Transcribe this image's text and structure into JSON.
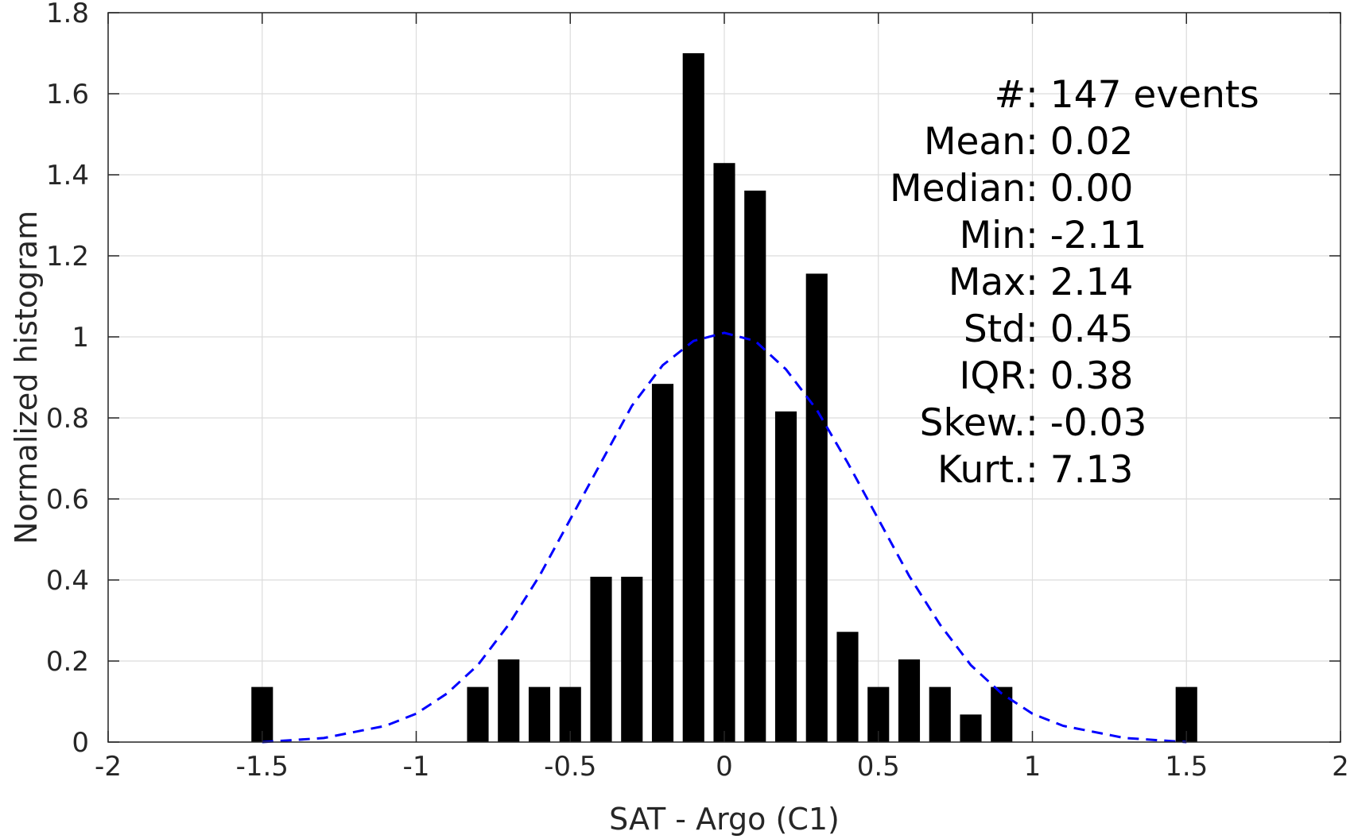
{
  "chart_data": {
    "type": "bar",
    "title": "",
    "xlabel": "SAT - Argo (C1)",
    "ylabel": "Normalized histogram",
    "xlim": [
      -2,
      2
    ],
    "ylim": [
      0,
      1.8
    ],
    "x_ticks": [
      -2,
      -1.5,
      -1,
      -0.5,
      0,
      0.5,
      1,
      1.5,
      2
    ],
    "x_tick_labels": [
      "-2",
      "-1.5",
      "-1",
      "-0.5",
      "0",
      "0.5",
      "1",
      "1.5",
      "2"
    ],
    "y_ticks": [
      0,
      0.2,
      0.4,
      0.6,
      0.8,
      1,
      1.2,
      1.4,
      1.6,
      1.8
    ],
    "y_tick_labels": [
      "0",
      "0.2",
      "0.4",
      "0.6",
      "0.8",
      "1",
      "1.2",
      "1.4",
      "1.6",
      "1.8"
    ],
    "grid": true,
    "bar_color": "#000000",
    "fit_color": "#0000ff",
    "bin_width": 0.1,
    "bars": [
      {
        "x": -1.5,
        "y": 0.136
      },
      {
        "x": -0.8,
        "y": 0.136
      },
      {
        "x": -0.7,
        "y": 0.204
      },
      {
        "x": -0.6,
        "y": 0.136
      },
      {
        "x": -0.5,
        "y": 0.136
      },
      {
        "x": -0.4,
        "y": 0.408
      },
      {
        "x": -0.3,
        "y": 0.408
      },
      {
        "x": -0.2,
        "y": 0.884
      },
      {
        "x": -0.1,
        "y": 1.7
      },
      {
        "x": 0.0,
        "y": 1.429
      },
      {
        "x": 0.1,
        "y": 1.361
      },
      {
        "x": 0.2,
        "y": 0.816
      },
      {
        "x": 0.3,
        "y": 1.156
      },
      {
        "x": 0.4,
        "y": 0.272
      },
      {
        "x": 0.5,
        "y": 0.136
      },
      {
        "x": 0.6,
        "y": 0.204
      },
      {
        "x": 0.7,
        "y": 0.136
      },
      {
        "x": 0.8,
        "y": 0.068
      },
      {
        "x": 0.9,
        "y": 0.136
      },
      {
        "x": 1.5,
        "y": 0.136
      }
    ],
    "fit_curve": {
      "style": "dashed",
      "points": [
        [
          -1.5,
          0.0
        ],
        [
          -1.3,
          0.01
        ],
        [
          -1.1,
          0.04
        ],
        [
          -1.0,
          0.07
        ],
        [
          -0.9,
          0.12
        ],
        [
          -0.8,
          0.19
        ],
        [
          -0.7,
          0.29
        ],
        [
          -0.6,
          0.41
        ],
        [
          -0.5,
          0.55
        ],
        [
          -0.4,
          0.69
        ],
        [
          -0.3,
          0.83
        ],
        [
          -0.2,
          0.93
        ],
        [
          -0.1,
          0.99
        ],
        [
          0.0,
          1.01
        ],
        [
          0.1,
          0.99
        ],
        [
          0.2,
          0.92
        ],
        [
          0.3,
          0.82
        ],
        [
          0.4,
          0.69
        ],
        [
          0.5,
          0.55
        ],
        [
          0.6,
          0.41
        ],
        [
          0.7,
          0.29
        ],
        [
          0.8,
          0.19
        ],
        [
          0.9,
          0.12
        ],
        [
          1.0,
          0.07
        ],
        [
          1.1,
          0.04
        ],
        [
          1.3,
          0.01
        ],
        [
          1.5,
          0.0
        ]
      ]
    },
    "stats": [
      {
        "label": "#  ",
        "value": "147 events"
      },
      {
        "label": "Mean ",
        "value": "0.02"
      },
      {
        "label": "Median ",
        "value": "0.00"
      },
      {
        "label": "Min ",
        "value": "-2.11"
      },
      {
        "label": "Max ",
        "value": "2.14"
      },
      {
        "label": "Std ",
        "value": "0.45"
      },
      {
        "label": "IQR ",
        "value": "0.38"
      },
      {
        "label": "Skew. ",
        "value": "-0.03"
      },
      {
        "label": "Kurt. ",
        "value": "7.13"
      }
    ]
  }
}
